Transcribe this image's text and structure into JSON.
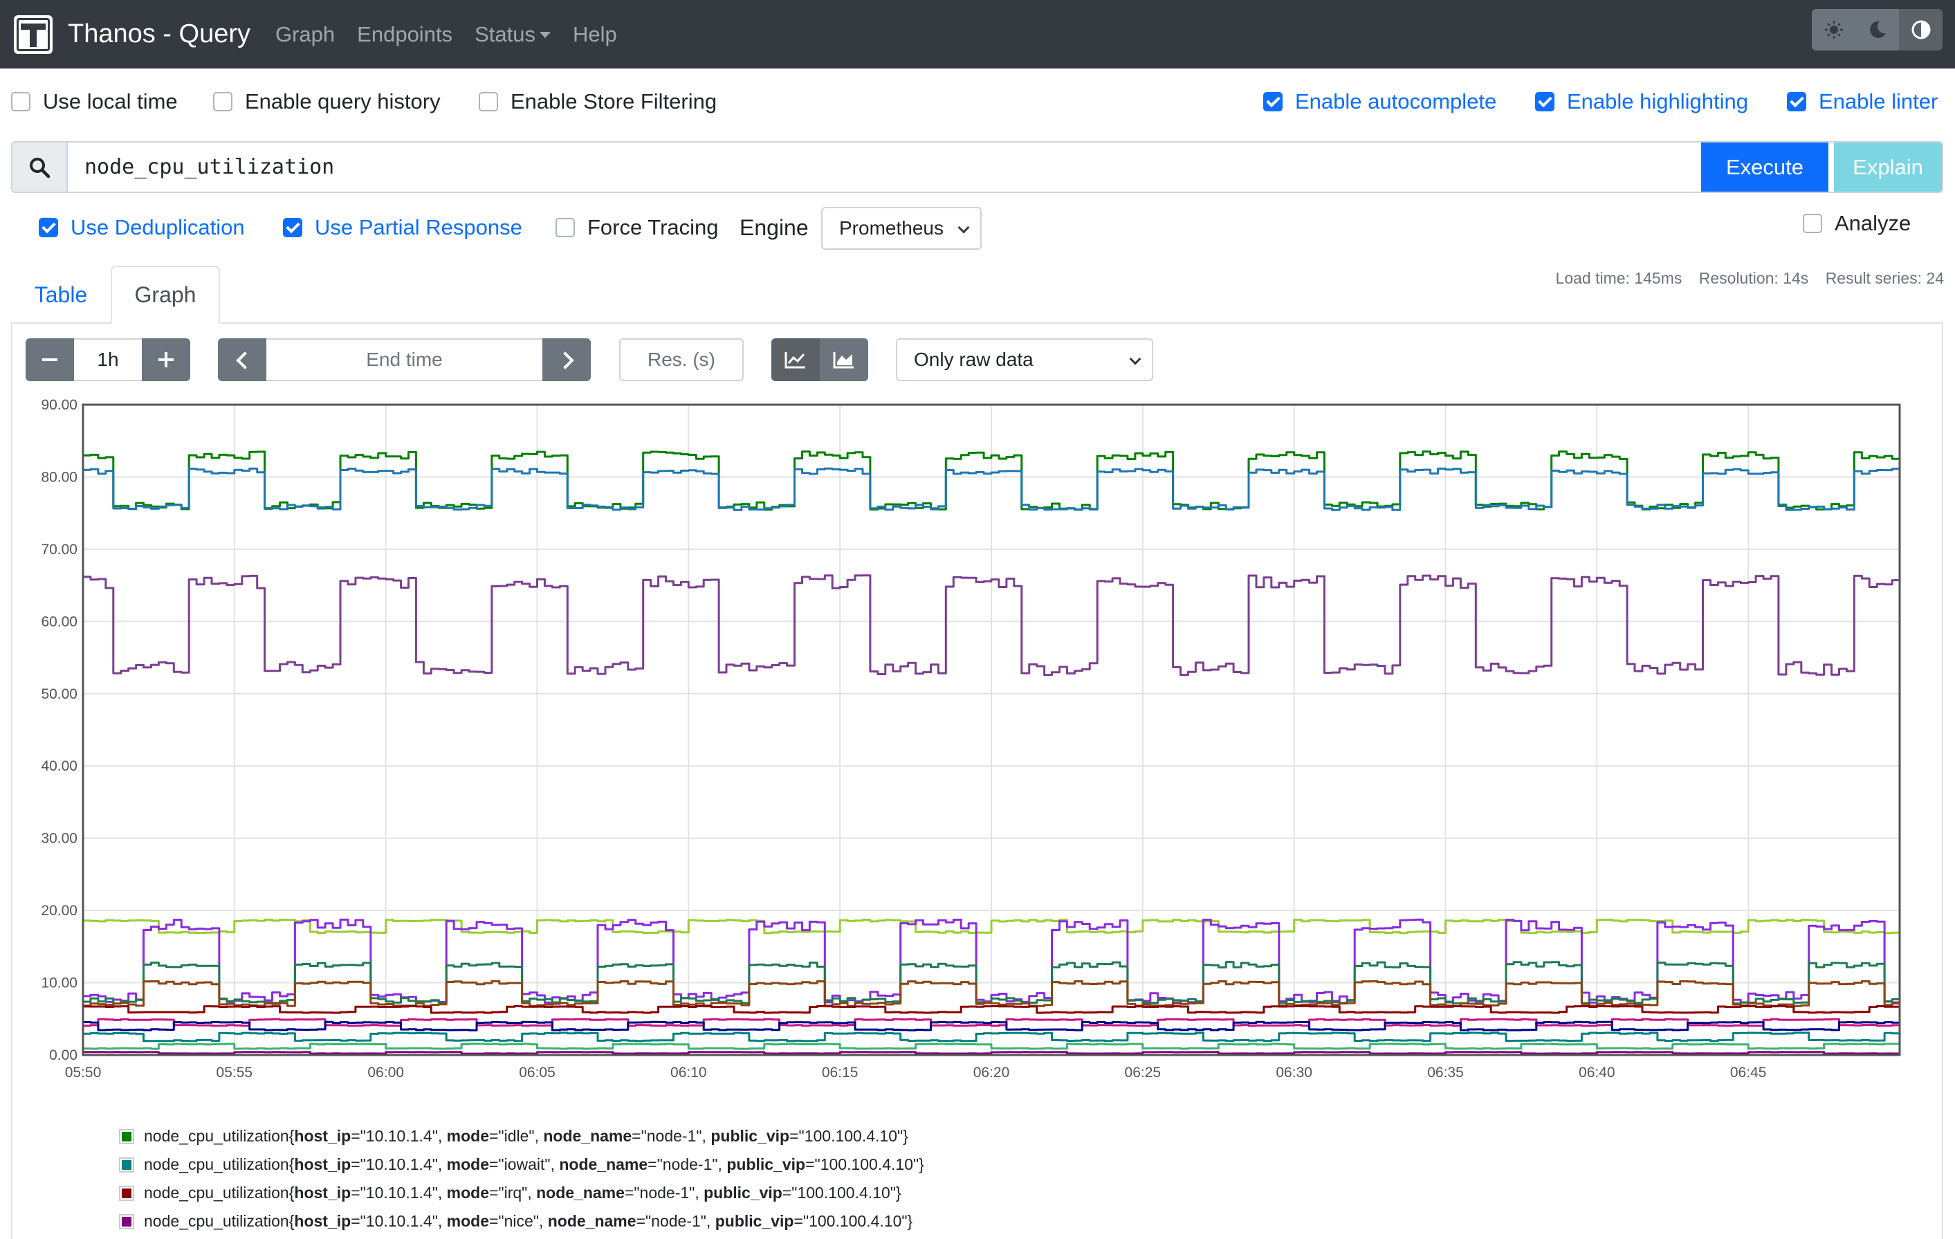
{
  "app": {
    "title": "Thanos - Query",
    "nav": [
      "Graph",
      "Endpoints",
      "Status",
      "Help"
    ]
  },
  "theme_icons": [
    "sun-icon",
    "moon-icon",
    "contrast-icon"
  ],
  "options": {
    "use_local_time": {
      "label": "Use local time",
      "checked": false
    },
    "enable_query_history": {
      "label": "Enable query history",
      "checked": false
    },
    "enable_store_filtering": {
      "label": "Enable Store Filtering",
      "checked": false
    },
    "enable_autocomplete": {
      "label": "Enable autocomplete",
      "checked": true
    },
    "enable_highlighting": {
      "label": "Enable highlighting",
      "checked": true
    },
    "enable_linter": {
      "label": "Enable linter",
      "checked": true
    }
  },
  "query": {
    "expression": "node_cpu_utilization",
    "execute_label": "Execute",
    "explain_label": "Explain"
  },
  "query_options": {
    "use_deduplication": {
      "label": "Use Deduplication",
      "checked": true
    },
    "use_partial_response": {
      "label": "Use Partial Response",
      "checked": true
    },
    "force_tracing": {
      "label": "Force Tracing",
      "checked": false
    },
    "engine_label": "Engine",
    "engine_value": "Prometheus",
    "analyze": {
      "label": "Analyze",
      "checked": false
    }
  },
  "stats": {
    "load_time": "Load time: 145ms",
    "resolution": "Resolution: 14s",
    "result_series": "Result series: 24"
  },
  "tabs": {
    "table": "Table",
    "graph": "Graph"
  },
  "graph_controls": {
    "range": "1h",
    "end_time_placeholder": "End time",
    "res_placeholder": "Res. (s)",
    "downsampling": "Only raw data"
  },
  "chart_data": {
    "type": "line",
    "ylim": [
      0,
      90
    ],
    "y_ticks": [
      "0.00",
      "10.00",
      "20.00",
      "30.00",
      "40.00",
      "50.00",
      "60.00",
      "70.00",
      "80.00",
      "90.00"
    ],
    "x_ticks": [
      "05:50",
      "05:55",
      "06:00",
      "06:05",
      "06:10",
      "06:15",
      "06:20",
      "06:25",
      "06:30",
      "06:35",
      "06:40",
      "06:45"
    ],
    "x_start_min": 0,
    "x_end_min": 60,
    "grid": true,
    "series": [
      {
        "name": "idle",
        "color": "#008000",
        "base": 79.5,
        "amp": 3.5,
        "phase": 0.3
      },
      {
        "color": "#1f77b4",
        "base": 78.3,
        "amp": 2.5,
        "phase": 0.3
      },
      {
        "color": "#7b3f91",
        "base": 59.5,
        "amp": 6,
        "phase": 0.3
      },
      {
        "color": "#9acd32",
        "base": 17.8,
        "amp": 0.8,
        "phase": 0.0
      },
      {
        "color": "#8a2be2",
        "base": 13.0,
        "amp": 5,
        "phase": 0.6
      },
      {
        "color": "#1e7b52",
        "base": 10.0,
        "amp": 2.5,
        "phase": 0.6
      },
      {
        "color": "#8b4513",
        "base": 8.5,
        "amp": 1.5,
        "phase": 0.6
      },
      {
        "name": "irq",
        "color": "#8b0000",
        "base": 6.3,
        "amp": 0.4,
        "phase": 0.2
      },
      {
        "color": "#c71585",
        "base": 4.5,
        "amp": 0.4,
        "phase": 0.9
      },
      {
        "color": "#00008b",
        "base": 4.0,
        "amp": 0.5,
        "phase": 0.4
      },
      {
        "name": "iowait",
        "color": "#008080",
        "base": 2.5,
        "amp": 0.5,
        "phase": 0.1
      },
      {
        "color": "#3cb371",
        "base": 1.2,
        "amp": 0.3,
        "phase": 0.5
      },
      {
        "name": "nice",
        "color": "#800080",
        "base": 0.3,
        "amp": 0.1,
        "phase": 0.0
      }
    ]
  },
  "legend": [
    {
      "color": "#008000",
      "metric": "node_cpu_utilization",
      "host_ip": "\"10.10.1.4\"",
      "mode": "\"idle\"",
      "node_name": "\"node-1\"",
      "public_vip": "\"100.100.4.10\""
    },
    {
      "color": "#008080",
      "metric": "node_cpu_utilization",
      "host_ip": "\"10.10.1.4\"",
      "mode": "\"iowait\"",
      "node_name": "\"node-1\"",
      "public_vip": "\"100.100.4.10\""
    },
    {
      "color": "#8b0000",
      "metric": "node_cpu_utilization",
      "host_ip": "\"10.10.1.4\"",
      "mode": "\"irq\"",
      "node_name": "\"node-1\"",
      "public_vip": "\"100.100.4.10\""
    },
    {
      "color": "#800080",
      "metric": "node_cpu_utilization",
      "host_ip": "\"10.10.1.4\"",
      "mode": "\"nice\"",
      "node_name": "\"node-1\"",
      "public_vip": "\"100.100.4.10\""
    }
  ]
}
